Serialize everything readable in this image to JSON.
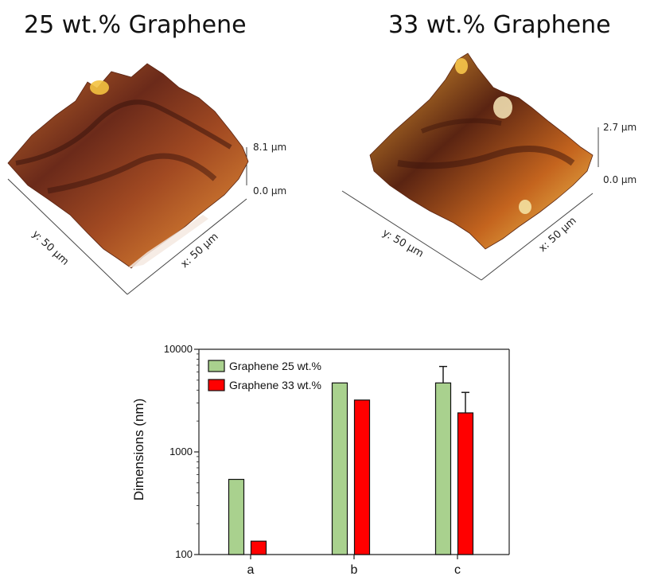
{
  "afm": {
    "left": {
      "title": "25 wt.% Graphene",
      "z_top": "8.1 µm",
      "z_bottom": "0.0 µm",
      "x_label": "x: 50 µm",
      "y_label": "y: 50 µm"
    },
    "right": {
      "title": "33 wt.% Graphene",
      "z_top": "2.7 µm",
      "z_bottom": "0.0 µm",
      "x_label": "x: 50 µm",
      "y_label": "y: 50 µm"
    }
  },
  "chart_data": {
    "type": "bar",
    "categories": [
      "a",
      "b",
      "c"
    ],
    "series": [
      {
        "name": "Graphene 25 wt.%",
        "color": "#a9d18e",
        "values": [
          540,
          4700,
          4700
        ],
        "error": [
          null,
          null,
          2100
        ]
      },
      {
        "name": "Graphene 33 wt.%",
        "color": "#ff0000",
        "values": [
          135,
          3200,
          2400
        ],
        "error": [
          null,
          null,
          1400
        ]
      }
    ],
    "ylabel": "Dimensions (nm)",
    "xlabel": "",
    "yscale": "log",
    "ylim": [
      100,
      10000
    ],
    "yticks": [
      "100",
      "1000",
      "10000"
    ],
    "legend_position": "top-left",
    "grid": false
  }
}
